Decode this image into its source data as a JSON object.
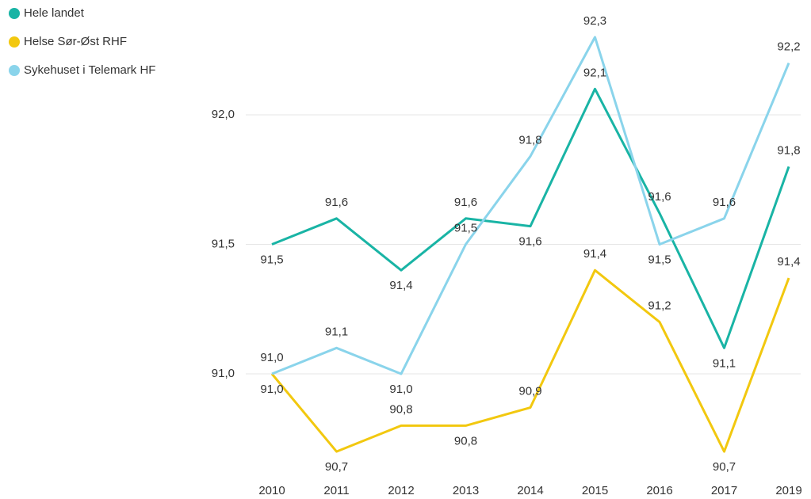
{
  "chart_data": {
    "type": "line",
    "categories": [
      "2010",
      "2011",
      "2012",
      "2013",
      "2014",
      "2015",
      "2016",
      "2017",
      "2019"
    ],
    "series": [
      {
        "name": "Hele landet",
        "color": "#19b4a5",
        "values": [
          91.5,
          91.6,
          91.4,
          91.6,
          91.57,
          92.1,
          91.62,
          91.1,
          91.8
        ],
        "value_labels": [
          "91,5",
          "91,6",
          "91,4",
          "91,6",
          "91,6",
          "92,1",
          "91,6",
          "91,1",
          "91,8"
        ]
      },
      {
        "name": "Helse Sør-Øst RHF",
        "color": "#f2c80f",
        "values": [
          91.0,
          90.7,
          90.8,
          90.8,
          90.87,
          91.4,
          91.2,
          90.7,
          91.37
        ],
        "value_labels": [
          "91,0",
          "90,7",
          "90,8",
          "90,8",
          "90,9",
          "91,4",
          "91,2",
          "90,7",
          "91,4"
        ]
      },
      {
        "name": "Sykehuset i Telemark HF",
        "color": "#8ad4eb",
        "values": [
          91.0,
          91.1,
          91.0,
          91.5,
          91.84,
          92.3,
          91.5,
          91.6,
          92.2
        ],
        "value_labels": [
          "91,0",
          "91,1",
          "91,0",
          "91,5",
          "91,8",
          "92,3",
          "91,5",
          "91,6",
          "92,2"
        ]
      }
    ],
    "ylim": [
      90.6,
      92.4
    ],
    "yticks": [
      {
        "value": 91.0,
        "label": "91,0"
      },
      {
        "value": 91.5,
        "label": "91,5"
      },
      {
        "value": 92.0,
        "label": "92,0"
      }
    ],
    "grid": true
  }
}
